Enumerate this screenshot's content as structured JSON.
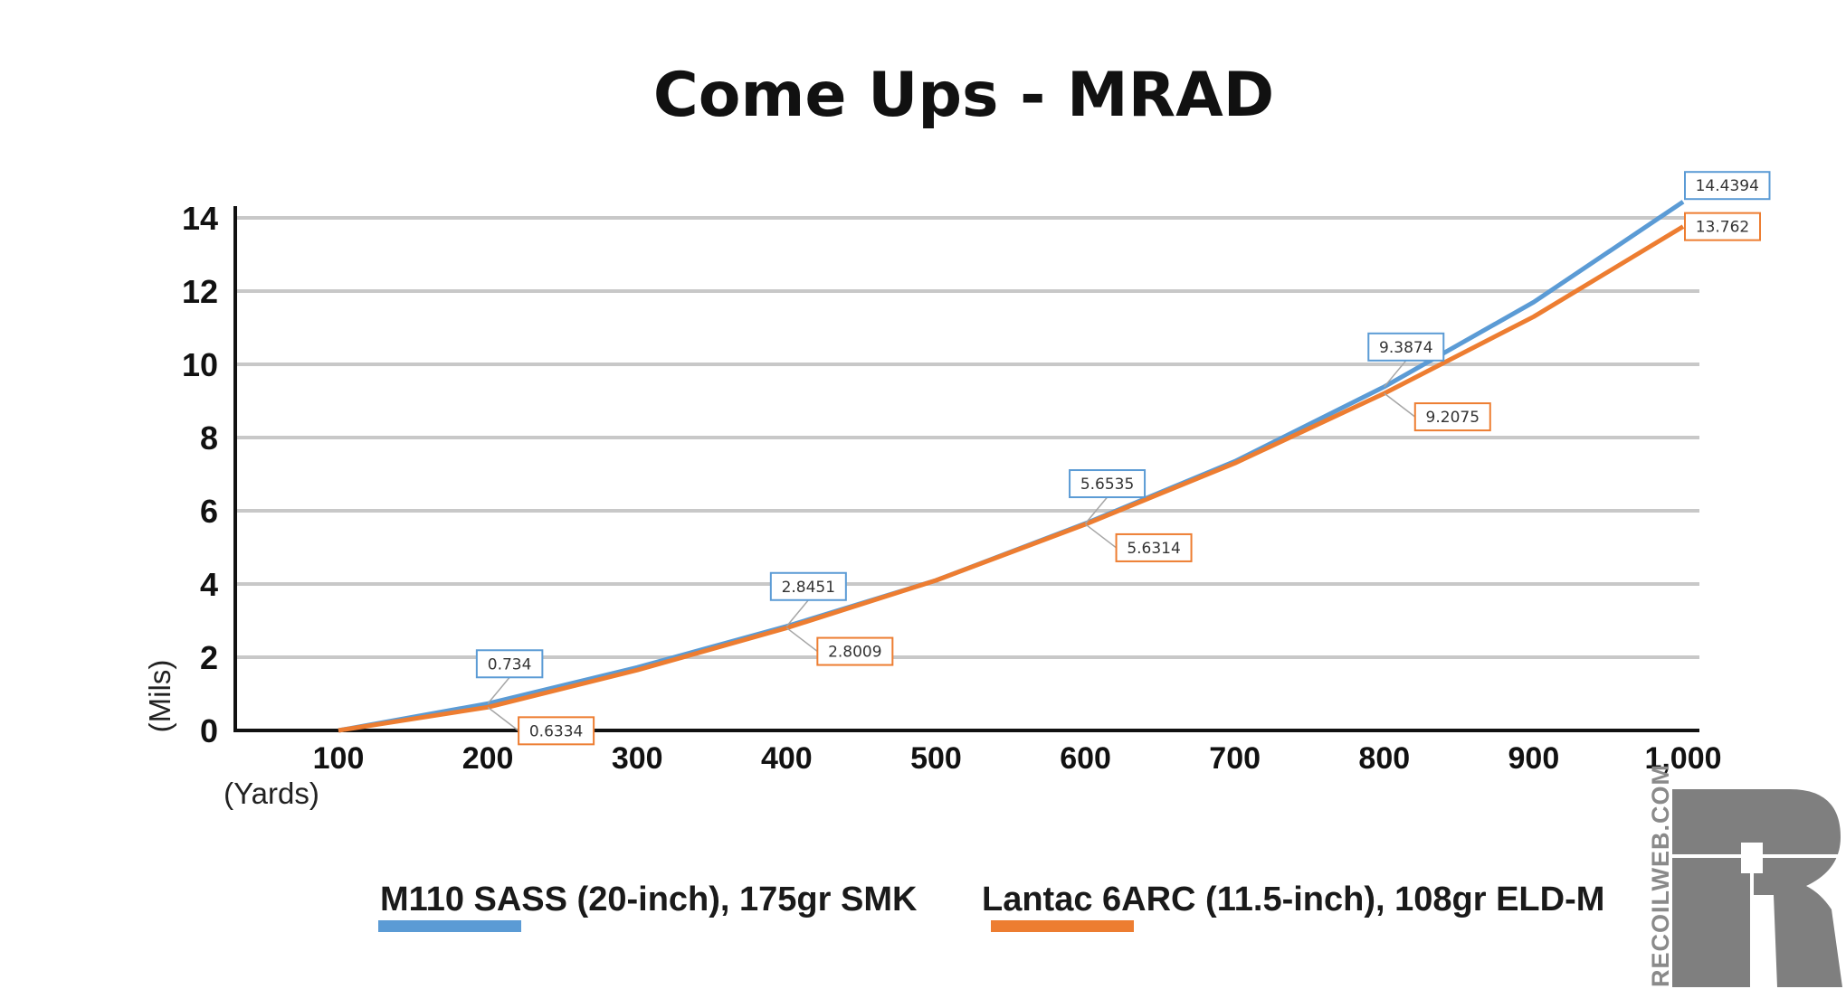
{
  "chart_data": {
    "type": "line",
    "title": "Come Ups - MRAD",
    "xlabel": "(Yards)",
    "ylabel": "(Mils)",
    "x": [
      100,
      200,
      300,
      400,
      500,
      600,
      700,
      800,
      900,
      1000
    ],
    "x_tick_labels": [
      "100",
      "200",
      "300",
      "400",
      "500",
      "600",
      "700",
      "800",
      "900",
      "1,000"
    ],
    "y_ticks": [
      0,
      2,
      4,
      6,
      8,
      10,
      12,
      14
    ],
    "ylim": [
      0,
      14
    ],
    "grid": true,
    "legend_position": "bottom",
    "series": [
      {
        "name": "M110 SASS (20-inch), 175gr SMK",
        "color": "#5b9bd5",
        "values": [
          0,
          0.734,
          1.72,
          2.8451,
          4.1,
          5.6535,
          7.35,
          9.3874,
          11.7,
          14.4394
        ],
        "data_labels": [
          {
            "index": 1,
            "text": "0.734"
          },
          {
            "index": 3,
            "text": "2.8451"
          },
          {
            "index": 5,
            "text": "5.6535"
          },
          {
            "index": 7,
            "text": "9.3874"
          },
          {
            "index": 9,
            "text": "14.4394"
          }
        ]
      },
      {
        "name": "Lantac 6ARC (11.5-inch), 108gr ELD-M",
        "color": "#ed7d31",
        "values": [
          0,
          0.6334,
          1.65,
          2.8009,
          4.1,
          5.6314,
          7.3,
          9.2075,
          11.3,
          13.762
        ],
        "data_labels": [
          {
            "index": 1,
            "text": "0.6334"
          },
          {
            "index": 3,
            "text": "2.8009"
          },
          {
            "index": 5,
            "text": "5.6314"
          },
          {
            "index": 7,
            "text": "9.2075"
          },
          {
            "index": 9,
            "text": "13.762"
          }
        ]
      }
    ]
  },
  "branding": {
    "watermark_text": "RECOILWEB.COM",
    "logo_icon": "recoil-r-logo-icon",
    "logo_color": "#7f7f7f"
  }
}
